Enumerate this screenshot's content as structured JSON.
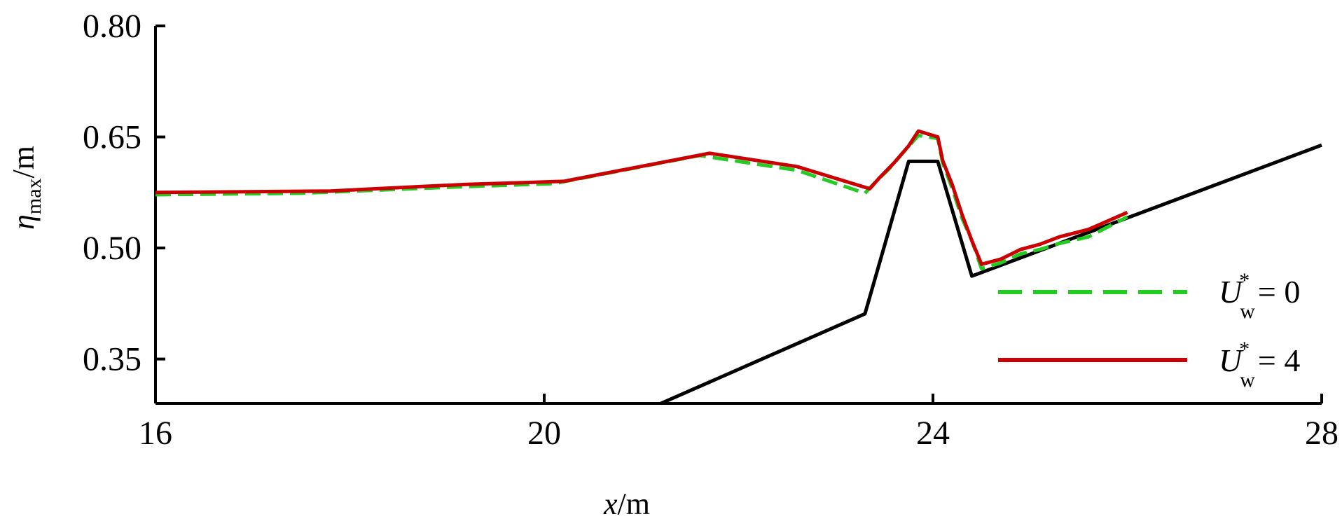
{
  "chart_data": {
    "type": "line",
    "xlabel": {
      "var": "x",
      "unit": "/m"
    },
    "ylabel": {
      "var": "η",
      "sub": "max",
      "unit": "/m"
    },
    "xlim": [
      16,
      28
    ],
    "ylim": [
      0.29,
      0.8
    ],
    "xticks": [
      "16",
      "20",
      "24",
      "28"
    ],
    "yticks": [
      "0.35",
      "0.50",
      "0.65",
      "0.80"
    ],
    "grid": false,
    "legend": {
      "placement": "right"
    },
    "series": [
      {
        "key": "dashed",
        "legend": {
          "sym": "U",
          "sup": "*",
          "sub": "w",
          "value": "= 0"
        },
        "color": "#22cc22",
        "style": "dashed",
        "points": [
          [
            16,
            0.572
          ],
          [
            17.5,
            0.574
          ],
          [
            19,
            0.582
          ],
          [
            20.1,
            0.587
          ],
          [
            21.6,
            0.625
          ],
          [
            22.6,
            0.605
          ],
          [
            23.3,
            0.574
          ],
          [
            23.4,
            0.588
          ],
          [
            23.55,
            0.607
          ],
          [
            23.7,
            0.63
          ],
          [
            23.85,
            0.652
          ],
          [
            24.05,
            0.648
          ],
          [
            24.1,
            0.615
          ],
          [
            24.2,
            0.58
          ],
          [
            24.3,
            0.54
          ],
          [
            24.4,
            0.51
          ],
          [
            24.5,
            0.472
          ],
          [
            24.7,
            0.48
          ],
          [
            24.9,
            0.492
          ],
          [
            25.1,
            0.498
          ],
          [
            25.3,
            0.506
          ],
          [
            25.6,
            0.515
          ],
          [
            26.0,
            0.542
          ]
        ]
      },
      {
        "key": "solid",
        "legend": {
          "sym": "U",
          "sup": "*",
          "sub": "w",
          "value": "= 4"
        },
        "color": "#cc0000",
        "style": "solid",
        "points": [
          [
            16,
            0.575
          ],
          [
            17.8,
            0.577
          ],
          [
            19.2,
            0.586
          ],
          [
            20.2,
            0.59
          ],
          [
            21.7,
            0.628
          ],
          [
            22.6,
            0.61
          ],
          [
            23.35,
            0.58
          ],
          [
            23.45,
            0.595
          ],
          [
            23.6,
            0.615
          ],
          [
            23.75,
            0.638
          ],
          [
            23.85,
            0.658
          ],
          [
            24.05,
            0.65
          ],
          [
            24.1,
            0.618
          ],
          [
            24.2,
            0.585
          ],
          [
            24.3,
            0.545
          ],
          [
            24.4,
            0.51
          ],
          [
            24.5,
            0.478
          ],
          [
            24.7,
            0.485
          ],
          [
            24.9,
            0.498
          ],
          [
            25.1,
            0.505
          ],
          [
            25.3,
            0.515
          ],
          [
            25.6,
            0.525
          ],
          [
            26.0,
            0.548
          ]
        ]
      },
      {
        "key": "bathymetry",
        "color": "#000000",
        "style": "solid",
        "points": [
          [
            21.2,
            0.29
          ],
          [
            23.3,
            0.411
          ],
          [
            23.75,
            0.617
          ],
          [
            24.05,
            0.617
          ],
          [
            24.4,
            0.462
          ],
          [
            28,
            0.639
          ]
        ]
      }
    ]
  }
}
